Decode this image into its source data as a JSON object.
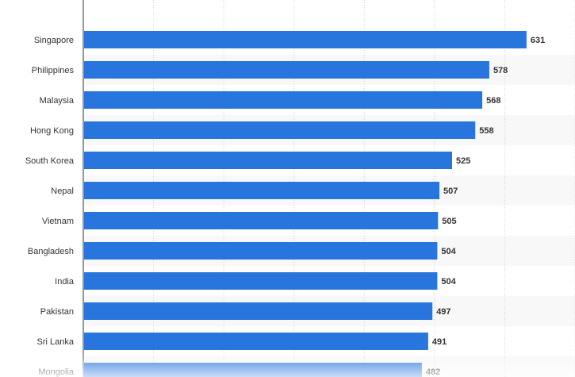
{
  "chart_data": {
    "type": "bar",
    "orientation": "horizontal",
    "categories": [
      "Singapore",
      "Philippines",
      "Malaysia",
      "Hong Kong",
      "South Korea",
      "Nepal",
      "Vietnam",
      "Bangladesh",
      "India",
      "Pakistan",
      "Sri Lanka",
      "Mongolia"
    ],
    "values": [
      631,
      578,
      568,
      558,
      525,
      507,
      505,
      504,
      504,
      497,
      491,
      482
    ],
    "value_labels": [
      "631",
      "578",
      "568",
      "558",
      "525",
      "507",
      "505",
      "504",
      "504",
      "497",
      "491",
      "482"
    ],
    "title": "",
    "xlabel": "",
    "ylabel": "",
    "xlim": [
      0,
      700
    ],
    "grid": true,
    "bar_color": "#2876dd",
    "label_color": "#333333",
    "row_alt_color": "#f8f8f8"
  }
}
